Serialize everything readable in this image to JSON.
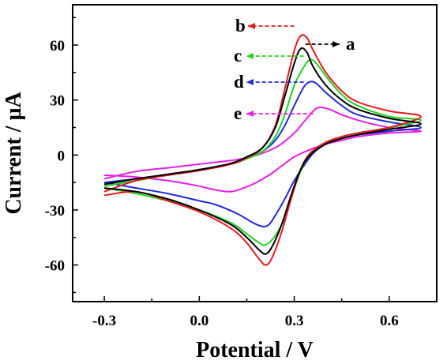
{
  "chart_data": {
    "type": "line",
    "title": "",
    "xlabel": "Potential / V",
    "ylabel": "Current / μA",
    "xlim": [
      -0.4,
      0.75
    ],
    "ylim": [
      -80,
      82
    ],
    "x_ticks": [
      -0.3,
      0.0,
      0.3,
      0.6
    ],
    "x_tick_labels": [
      "-0.3",
      "0.0",
      "0.3",
      "0.6"
    ],
    "y_ticks": [
      -60,
      -30,
      0,
      30,
      60
    ],
    "y_tick_labels": [
      "-60",
      "-30",
      "0",
      "30",
      "60"
    ],
    "grid": false,
    "legend": "annotated labels with arrows pointing to anodic peaks",
    "series": [
      {
        "name": "a",
        "color": "#000000",
        "label_color": "#000000",
        "forward": [
          [
            -0.3,
            -16
          ],
          [
            -0.2,
            -13
          ],
          [
            -0.1,
            -10.5
          ],
          [
            0.0,
            -8
          ],
          [
            0.1,
            -4.5
          ],
          [
            0.15,
            -1
          ],
          [
            0.2,
            4
          ],
          [
            0.24,
            15
          ],
          [
            0.27,
            32
          ],
          [
            0.3,
            50
          ],
          [
            0.32,
            58
          ],
          [
            0.34,
            56
          ],
          [
            0.36,
            48
          ],
          [
            0.4,
            38
          ],
          [
            0.45,
            30
          ],
          [
            0.5,
            25
          ],
          [
            0.6,
            20
          ],
          [
            0.7,
            17
          ]
        ],
        "reverse": [
          [
            0.7,
            16
          ],
          [
            0.6,
            14
          ],
          [
            0.5,
            11
          ],
          [
            0.45,
            9
          ],
          [
            0.4,
            6
          ],
          [
            0.35,
            0
          ],
          [
            0.32,
            -8
          ],
          [
            0.29,
            -22
          ],
          [
            0.26,
            -38
          ],
          [
            0.23,
            -50
          ],
          [
            0.21,
            -54
          ],
          [
            0.19,
            -52
          ],
          [
            0.15,
            -45
          ],
          [
            0.1,
            -38
          ],
          [
            0.0,
            -30
          ],
          [
            -0.1,
            -24
          ],
          [
            -0.2,
            -20
          ],
          [
            -0.3,
            -18
          ]
        ]
      },
      {
        "name": "b",
        "color": "#e8191e",
        "label_color": "#e8191e",
        "forward": [
          [
            -0.3,
            -20
          ],
          [
            -0.2,
            -14
          ],
          [
            -0.1,
            -11
          ],
          [
            0.0,
            -8.5
          ],
          [
            0.1,
            -5
          ],
          [
            0.15,
            -1.5
          ],
          [
            0.2,
            4
          ],
          [
            0.24,
            16
          ],
          [
            0.27,
            36
          ],
          [
            0.3,
            57
          ],
          [
            0.32,
            65
          ],
          [
            0.34,
            64
          ],
          [
            0.36,
            57
          ],
          [
            0.4,
            45
          ],
          [
            0.45,
            35
          ],
          [
            0.5,
            29
          ],
          [
            0.6,
            24
          ],
          [
            0.7,
            21
          ]
        ],
        "reverse": [
          [
            0.7,
            17
          ],
          [
            0.6,
            15
          ],
          [
            0.5,
            12
          ],
          [
            0.45,
            10
          ],
          [
            0.4,
            7
          ],
          [
            0.35,
            1
          ],
          [
            0.32,
            -8
          ],
          [
            0.29,
            -24
          ],
          [
            0.26,
            -42
          ],
          [
            0.23,
            -56
          ],
          [
            0.21,
            -60
          ],
          [
            0.19,
            -57
          ],
          [
            0.15,
            -48
          ],
          [
            0.1,
            -40
          ],
          [
            0.0,
            -31
          ],
          [
            -0.1,
            -25
          ],
          [
            -0.2,
            -20
          ],
          [
            -0.3,
            -22
          ]
        ]
      },
      {
        "name": "c",
        "color": "#22d122",
        "label_color": "#22d122",
        "forward": [
          [
            -0.3,
            -17
          ],
          [
            -0.2,
            -14
          ],
          [
            -0.1,
            -11
          ],
          [
            0.0,
            -8
          ],
          [
            0.1,
            -5
          ],
          [
            0.15,
            -2
          ],
          [
            0.2,
            2
          ],
          [
            0.24,
            10
          ],
          [
            0.27,
            22
          ],
          [
            0.3,
            38
          ],
          [
            0.33,
            48
          ],
          [
            0.35,
            52
          ],
          [
            0.37,
            50
          ],
          [
            0.4,
            43
          ],
          [
            0.45,
            33
          ],
          [
            0.5,
            27
          ],
          [
            0.6,
            21
          ],
          [
            0.7,
            19
          ]
        ],
        "reverse": [
          [
            0.7,
            17
          ],
          [
            0.6,
            15
          ],
          [
            0.5,
            12
          ],
          [
            0.45,
            10
          ],
          [
            0.4,
            7
          ],
          [
            0.36,
            2
          ],
          [
            0.33,
            -5
          ],
          [
            0.3,
            -18
          ],
          [
            0.27,
            -34
          ],
          [
            0.24,
            -44
          ],
          [
            0.21,
            -49
          ],
          [
            0.19,
            -48
          ],
          [
            0.15,
            -43
          ],
          [
            0.1,
            -37
          ],
          [
            0.0,
            -30
          ],
          [
            -0.1,
            -25
          ],
          [
            -0.2,
            -21
          ],
          [
            -0.3,
            -18
          ]
        ]
      },
      {
        "name": "d",
        "color": "#1f2bd6",
        "label_color": "#1f2bd6",
        "forward": [
          [
            -0.3,
            -15
          ],
          [
            -0.2,
            -13
          ],
          [
            -0.1,
            -11
          ],
          [
            0.0,
            -8
          ],
          [
            0.1,
            -5
          ],
          [
            0.15,
            -2
          ],
          [
            0.2,
            2
          ],
          [
            0.24,
            8
          ],
          [
            0.27,
            16
          ],
          [
            0.3,
            27
          ],
          [
            0.33,
            37
          ],
          [
            0.35,
            40
          ],
          [
            0.37,
            39
          ],
          [
            0.4,
            34
          ],
          [
            0.45,
            27
          ],
          [
            0.5,
            22
          ],
          [
            0.6,
            18
          ],
          [
            0.7,
            15
          ]
        ],
        "reverse": [
          [
            0.7,
            15
          ],
          [
            0.6,
            13
          ],
          [
            0.5,
            11
          ],
          [
            0.45,
            9
          ],
          [
            0.4,
            6
          ],
          [
            0.36,
            1
          ],
          [
            0.33,
            -6
          ],
          [
            0.3,
            -14
          ],
          [
            0.27,
            -24
          ],
          [
            0.24,
            -33
          ],
          [
            0.22,
            -38
          ],
          [
            0.2,
            -39
          ],
          [
            0.17,
            -37
          ],
          [
            0.12,
            -32
          ],
          [
            0.05,
            -27
          ],
          [
            0.0,
            -25
          ],
          [
            -0.1,
            -21
          ],
          [
            -0.2,
            -18
          ],
          [
            -0.3,
            -15
          ]
        ]
      },
      {
        "name": "e",
        "color": "#e51ee5",
        "label_color": "#e51ee5",
        "forward": [
          [
            -0.3,
            -13
          ],
          [
            -0.2,
            -9
          ],
          [
            -0.1,
            -7
          ],
          [
            0.0,
            -5
          ],
          [
            0.1,
            -3
          ],
          [
            0.15,
            -1.5
          ],
          [
            0.2,
            1
          ],
          [
            0.25,
            5
          ],
          [
            0.3,
            12
          ],
          [
            0.33,
            18
          ],
          [
            0.36,
            24
          ],
          [
            0.38,
            26
          ],
          [
            0.41,
            25
          ],
          [
            0.45,
            22
          ],
          [
            0.5,
            19
          ],
          [
            0.6,
            15
          ],
          [
            0.7,
            13
          ]
        ],
        "reverse": [
          [
            0.7,
            13
          ],
          [
            0.6,
            12
          ],
          [
            0.5,
            10
          ],
          [
            0.45,
            8
          ],
          [
            0.4,
            6
          ],
          [
            0.35,
            3
          ],
          [
            0.3,
            -1
          ],
          [
            0.26,
            -6
          ],
          [
            0.22,
            -11
          ],
          [
            0.18,
            -15
          ],
          [
            0.14,
            -18
          ],
          [
            0.1,
            -20
          ],
          [
            0.05,
            -19
          ],
          [
            0.0,
            -17
          ],
          [
            -0.1,
            -14
          ],
          [
            -0.2,
            -12
          ],
          [
            -0.3,
            -11
          ]
        ]
      }
    ],
    "annotations": [
      {
        "series": "b",
        "text": "b",
        "color": "#e8191e",
        "arrow": "left",
        "peak_x": 0.32,
        "peak_y": 65
      },
      {
        "series": "a",
        "text": "a",
        "color": "#000000",
        "arrow": "right",
        "peak_x": 0.32,
        "peak_y": 58
      },
      {
        "series": "c",
        "text": "c",
        "color": "#22d122",
        "arrow": "left",
        "peak_x": 0.35,
        "peak_y": 52
      },
      {
        "series": "d",
        "text": "d",
        "color": "#1f2bd6",
        "arrow": "left",
        "peak_x": 0.35,
        "peak_y": 40
      },
      {
        "series": "e",
        "text": "e",
        "color": "#e51ee5",
        "arrow": "left",
        "peak_x": 0.38,
        "peak_y": 26
      }
    ]
  }
}
